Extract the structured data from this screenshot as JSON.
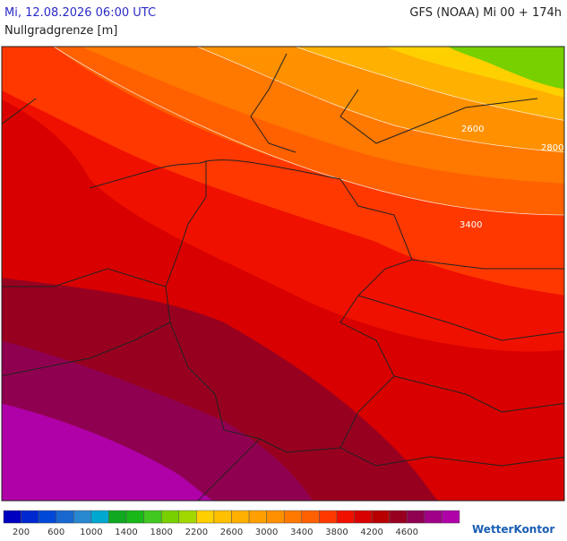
{
  "header": {
    "date": "Mi, 12.08.2026 06:00 UTC",
    "model": "GFS (NOAA) Mi 00 + 174h",
    "parameter": "Nullgradgrenze [m]"
  },
  "map": {
    "contour_labels": [
      "2600",
      "2800",
      "3400"
    ]
  },
  "legend": {
    "colors": [
      "#0000c0",
      "#0028d0",
      "#0048d8",
      "#1868d0",
      "#2888d0",
      "#00a8d0",
      "#10a820",
      "#18b818",
      "#40c820",
      "#78d000",
      "#a0d800",
      "#ffd000",
      "#ffc000",
      "#ffb000",
      "#ffa000",
      "#ff9000",
      "#ff7800",
      "#ff6000",
      "#ff3800",
      "#f01000",
      "#d80000",
      "#b80000",
      "#980020",
      "#900050",
      "#a00088",
      "#b000a8"
    ],
    "labels": [
      200,
      600,
      1000,
      1400,
      1800,
      2200,
      2600,
      3000,
      3400,
      3800,
      4200,
      4600
    ]
  },
  "logo": "WetterKontor"
}
